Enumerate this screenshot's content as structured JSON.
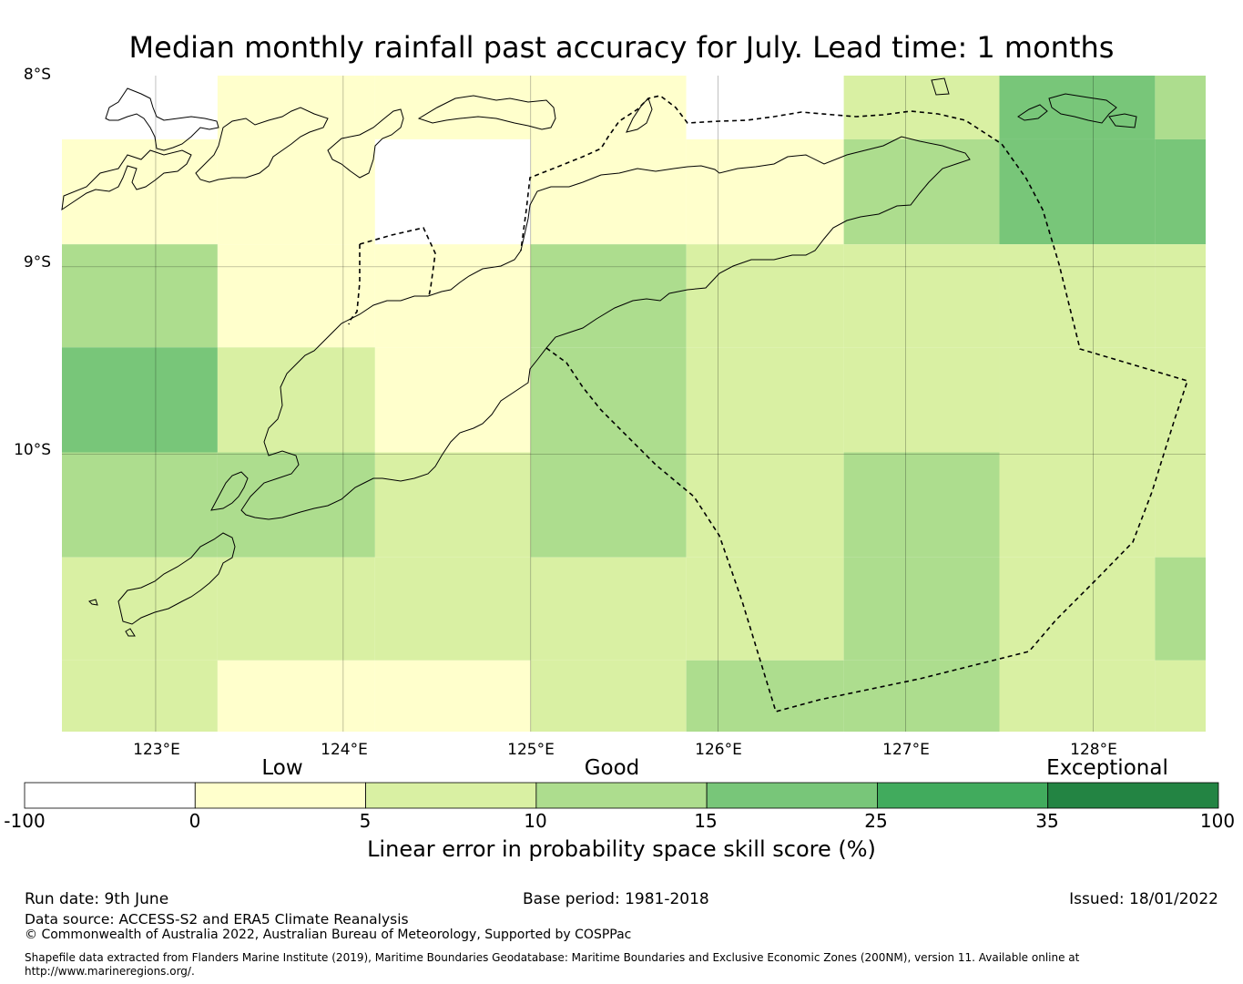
{
  "title": "Median monthly rainfall past accuracy for July. Lead time: 1 months",
  "map": {
    "lat_labels": [
      "8°S",
      "9°S",
      "10°S"
    ],
    "lon_labels": [
      "123°E",
      "124°E",
      "125°E",
      "126°E",
      "127°E",
      "128°E"
    ],
    "extent": {
      "lon_min": 122.5,
      "lon_max": 128.6,
      "lat_north": -7.98,
      "lat_south": -11.48
    },
    "grid_lon": [
      122.5,
      123.33,
      124.17,
      125.0,
      125.83,
      126.67,
      127.5,
      128.33,
      128.6
    ],
    "grid_lat": [
      -7.98,
      -8.32,
      -8.88,
      -9.43,
      -9.99,
      -10.55,
      -11.1,
      -11.48
    ],
    "skill_grid_categories": [
      [
        "missing",
        "low",
        "low",
        "low",
        "missing",
        "good_low",
        "good_high",
        "good_mid"
      ],
      [
        "low",
        "low",
        "missing",
        "low",
        "low",
        "good_mid",
        "good_high",
        "good_high"
      ],
      [
        "good_mid",
        "low",
        "low",
        "good_mid",
        "low_good",
        "low_good",
        "low_good",
        "low_good"
      ],
      [
        "good_high",
        "good_low",
        "low",
        "good_mid",
        "low_good",
        "low_good",
        "low_good",
        "low_good"
      ],
      [
        "good_mid",
        "good_mid",
        "good_low",
        "good_mid",
        "good_low",
        "good_mid",
        "good_low",
        "good_low"
      ],
      [
        "good_low",
        "good_low",
        "good_low",
        "good_low",
        "good_low",
        "good_mid",
        "good_low",
        "good_mid"
      ],
      [
        "good_low",
        "low",
        "low",
        "good_low",
        "good_mid",
        "good_mid",
        "good_low",
        "good_low"
      ]
    ],
    "category_colors": {
      "missing": "#ffffff",
      "low": "#ffffcc",
      "low_good": "#d9f0a3",
      "good_low": "#d9f0a3",
      "good_mid": "#addd8e",
      "good_high": "#78c679"
    }
  },
  "colorbar": {
    "categories": [
      "Low",
      "Good",
      "Exceptional"
    ],
    "ticks": [
      "-100",
      "0",
      "5",
      "10",
      "15",
      "25",
      "35",
      "100"
    ],
    "colors": [
      "#ffffff",
      "#ffffcc",
      "#d9f0a3",
      "#addd8e",
      "#78c679",
      "#41ab5d",
      "#238443"
    ],
    "label": "Linear error in probability space skill score (%)"
  },
  "footer": {
    "run_date": "Run date: 9th June",
    "base_period": "Base period: 1981-2018",
    "issued": "Issued: 18/01/2022",
    "data_source": "Data source: ACCESS-S2 and ERA5 Climate Reanalysis",
    "copyright": "© Commonwealth of Australia 2022, Australian Bureau of Meteorology, Supported by COSPPac",
    "shapefile_line1": "Shapefile data extracted from Flanders Marine Institute (2019), Maritime Boundaries Geodatabase: Maritime Boundaries and Exclusive Economic Zones (200NM), version 11. Available online at",
    "shapefile_line2": "http://www.marineregions.org/."
  }
}
